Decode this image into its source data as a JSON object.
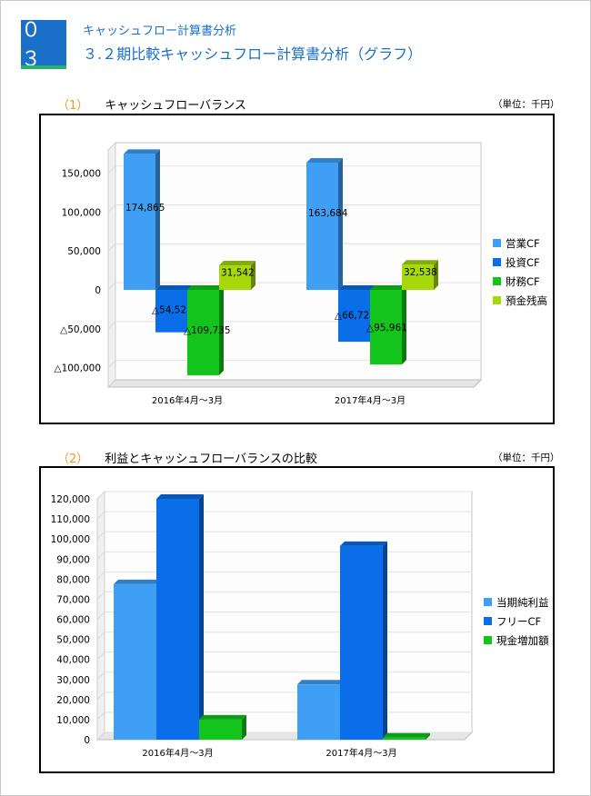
{
  "header": {
    "badge": "０３",
    "subtitle": "キャッシュフロー計算書分析",
    "title": "３.２期比較キャッシュフロー計算書分析（グラフ）"
  },
  "section1": {
    "number": "（1）",
    "title": "キャッシュフローバランス",
    "unit": "（単位：千円）"
  },
  "section2": {
    "number": "（2）",
    "title": "利益とキャッシュフローバランスの比較",
    "unit": "（単位：千円）"
  },
  "colors": {
    "blue_light": "#3f9ff5",
    "blue_dark": "#0a6ee8",
    "green": "#12c41c",
    "yellow_green": "#a6d80c"
  },
  "chart_data": [
    {
      "type": "bar",
      "categories": [
        "2016年4月～3月",
        "2017年4月～3月"
      ],
      "series": [
        {
          "name": "営業CF",
          "values": [
            174865,
            163684
          ],
          "labels": [
            "174,865",
            "163,684"
          ]
        },
        {
          "name": "投資CF",
          "values": [
            -54521,
            -66727
          ],
          "labels": [
            "△54,521",
            "△66,727"
          ]
        },
        {
          "name": "財務CF",
          "values": [
            -109735,
            -95961
          ],
          "labels": [
            "△109,735",
            "△95,961"
          ]
        },
        {
          "name": "預金残高",
          "values": [
            31542,
            32538
          ],
          "labels": [
            "31,542",
            "32,538"
          ]
        }
      ],
      "yticks": [
        150000,
        100000,
        50000,
        0,
        -50000,
        -100000
      ],
      "ytick_labels": [
        "150,000",
        "100,000",
        "50,000",
        "0",
        "△50,000",
        "△100,000"
      ],
      "ylim": [
        -125000,
        180000
      ],
      "legend": "right",
      "grid": true
    },
    {
      "type": "bar",
      "categories": [
        "2016年4月～3月",
        "2017年4月～3月"
      ],
      "series": [
        {
          "name": "当期純利益",
          "values": [
            77500,
            27500
          ]
        },
        {
          "name": "フリーCF",
          "values": [
            120000,
            96500
          ]
        },
        {
          "name": "現金増加額",
          "values": [
            10000,
            1000
          ]
        }
      ],
      "yticks": [
        120000,
        110000,
        100000,
        90000,
        80000,
        70000,
        60000,
        50000,
        40000,
        30000,
        20000,
        10000,
        0
      ],
      "ytick_labels": [
        "120,000",
        "110,000",
        "100,000",
        "90,000",
        "80,000",
        "70,000",
        "60,000",
        "50,000",
        "40,000",
        "30,000",
        "20,000",
        "10,000",
        "0"
      ],
      "ylim": [
        0,
        120000
      ],
      "legend": "right",
      "grid": true
    }
  ]
}
